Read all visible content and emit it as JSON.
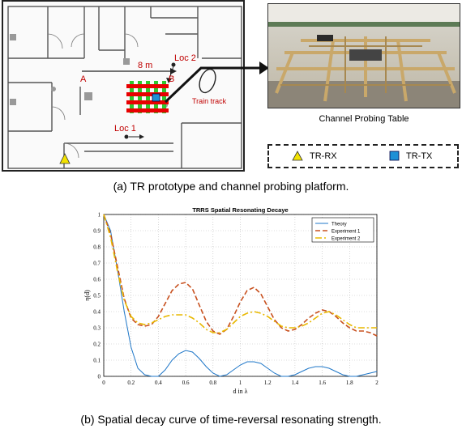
{
  "floorplan": {
    "distance_label": "8 m",
    "point_a": "A",
    "point_b": "B",
    "loc1": "Loc 1",
    "loc2": "Loc 2",
    "train_track": "Train track"
  },
  "photo": {
    "caption": "Channel Probing Table"
  },
  "legend": {
    "rx_label": "TR-RX",
    "tx_label": "TR-TX",
    "rx_color": "#f2e200",
    "tx_color": "#1e90d6"
  },
  "captions": {
    "a": "(a) TR prototype and channel probing platform.",
    "b": "(b) Spatial decay curve of time-reversal resonating strength."
  },
  "chart_data": {
    "type": "line",
    "title": "TRRS Spatial Resonating Decaye",
    "xlabel": "d in λ",
    "ylabel": "η(d)",
    "xlim": [
      0,
      2
    ],
    "ylim": [
      0,
      1
    ],
    "xticks": [
      "0",
      "0.2",
      "0.4",
      "0.6",
      "0.8",
      "1",
      "1.2",
      "1.4",
      "1.6",
      "1.8",
      "2"
    ],
    "yticks": [
      "0",
      "0.1",
      "0.2",
      "0.3",
      "0.4",
      "0.5",
      "0.6",
      "0.7",
      "0.8",
      "0.9",
      "1"
    ],
    "grid": true,
    "legend_position": "top-right",
    "series": [
      {
        "name": "Theory",
        "color": "#1f77c8",
        "dash": "solid",
        "x": [
          0,
          0.05,
          0.1,
          0.15,
          0.2,
          0.25,
          0.3,
          0.35,
          0.4,
          0.45,
          0.5,
          0.55,
          0.6,
          0.65,
          0.7,
          0.75,
          0.8,
          0.85,
          0.9,
          0.95,
          1.0,
          1.05,
          1.1,
          1.15,
          1.2,
          1.25,
          1.3,
          1.35,
          1.4,
          1.45,
          1.5,
          1.55,
          1.6,
          1.65,
          1.7,
          1.75,
          1.8,
          1.85,
          1.9,
          1.95,
          2.0
        ],
        "y": [
          1.0,
          0.9,
          0.66,
          0.4,
          0.18,
          0.05,
          0.01,
          0.0,
          0.0,
          0.04,
          0.1,
          0.14,
          0.16,
          0.15,
          0.11,
          0.06,
          0.02,
          0.0,
          0.01,
          0.04,
          0.07,
          0.09,
          0.09,
          0.08,
          0.05,
          0.02,
          0.0,
          0.0,
          0.01,
          0.03,
          0.05,
          0.06,
          0.06,
          0.05,
          0.03,
          0.01,
          0.0,
          0.0,
          0.01,
          0.02,
          0.03
        ]
      },
      {
        "name": "Experiment 1",
        "color": "#c8501e",
        "dash": "6,3",
        "x": [
          0,
          0.05,
          0.1,
          0.15,
          0.2,
          0.25,
          0.3,
          0.35,
          0.4,
          0.45,
          0.5,
          0.55,
          0.6,
          0.65,
          0.7,
          0.75,
          0.8,
          0.85,
          0.9,
          0.95,
          1.0,
          1.05,
          1.1,
          1.15,
          1.2,
          1.25,
          1.3,
          1.35,
          1.4,
          1.45,
          1.5,
          1.55,
          1.6,
          1.65,
          1.7,
          1.75,
          1.8,
          1.85,
          1.9,
          1.95,
          2.0
        ],
        "y": [
          1.0,
          0.88,
          0.68,
          0.48,
          0.36,
          0.32,
          0.31,
          0.32,
          0.37,
          0.45,
          0.53,
          0.57,
          0.58,
          0.54,
          0.44,
          0.34,
          0.28,
          0.26,
          0.29,
          0.37,
          0.46,
          0.53,
          0.55,
          0.51,
          0.43,
          0.35,
          0.3,
          0.28,
          0.29,
          0.32,
          0.36,
          0.39,
          0.41,
          0.4,
          0.37,
          0.33,
          0.3,
          0.28,
          0.28,
          0.27,
          0.25
        ]
      },
      {
        "name": "Experiment 2",
        "color": "#e8b800",
        "dash": "8,3,2,3",
        "x": [
          0,
          0.05,
          0.1,
          0.15,
          0.2,
          0.25,
          0.3,
          0.35,
          0.4,
          0.45,
          0.5,
          0.55,
          0.6,
          0.65,
          0.7,
          0.75,
          0.8,
          0.85,
          0.9,
          0.95,
          1.0,
          1.05,
          1.1,
          1.15,
          1.2,
          1.25,
          1.3,
          1.35,
          1.4,
          1.45,
          1.5,
          1.55,
          1.6,
          1.65,
          1.7,
          1.75,
          1.8,
          1.85,
          1.9,
          1.95,
          2.0
        ],
        "y": [
          1.0,
          0.86,
          0.65,
          0.47,
          0.37,
          0.33,
          0.32,
          0.33,
          0.35,
          0.37,
          0.38,
          0.38,
          0.38,
          0.36,
          0.33,
          0.29,
          0.27,
          0.27,
          0.29,
          0.33,
          0.37,
          0.39,
          0.4,
          0.39,
          0.37,
          0.34,
          0.31,
          0.3,
          0.3,
          0.31,
          0.33,
          0.36,
          0.39,
          0.4,
          0.38,
          0.35,
          0.32,
          0.3,
          0.3,
          0.3,
          0.3
        ]
      }
    ]
  }
}
